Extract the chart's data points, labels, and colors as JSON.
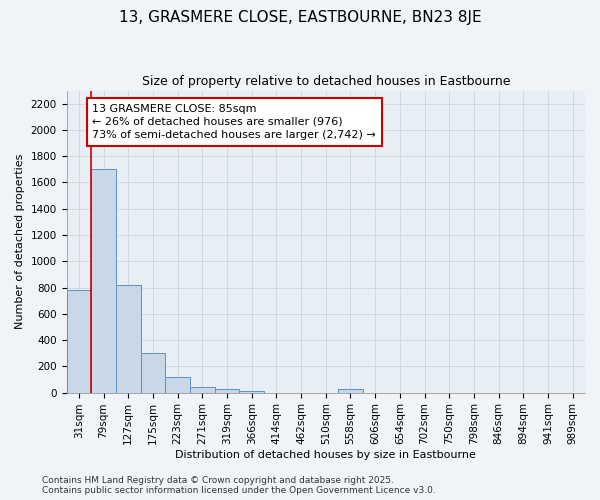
{
  "title": "13, GRASMERE CLOSE, EASTBOURNE, BN23 8JE",
  "subtitle": "Size of property relative to detached houses in Eastbourne",
  "xlabel": "Distribution of detached houses by size in Eastbourne",
  "ylabel": "Number of detached properties",
  "categories": [
    "31sqm",
    "79sqm",
    "127sqm",
    "175sqm",
    "223sqm",
    "271sqm",
    "319sqm",
    "366sqm",
    "414sqm",
    "462sqm",
    "510sqm",
    "558sqm",
    "606sqm",
    "654sqm",
    "702sqm",
    "750sqm",
    "798sqm",
    "846sqm",
    "894sqm",
    "941sqm",
    "989sqm"
  ],
  "values": [
    780,
    1700,
    820,
    300,
    115,
    40,
    30,
    10,
    0,
    0,
    0,
    30,
    0,
    0,
    0,
    0,
    0,
    0,
    0,
    0,
    0
  ],
  "bar_color": "#c8d8e8",
  "bar_edge_color": "#6090c0",
  "vline_color": "#cc0000",
  "vline_position": 1,
  "annotation_text": "13 GRASMERE CLOSE: 85sqm\n← 26% of detached houses are smaller (976)\n73% of semi-detached houses are larger (2,742) →",
  "annotation_box_edgecolor": "#cc0000",
  "ylim": [
    0,
    2300
  ],
  "yticks": [
    0,
    200,
    400,
    600,
    800,
    1000,
    1200,
    1400,
    1600,
    1800,
    2000,
    2200
  ],
  "grid_color": "#c8d0da",
  "plot_bg_color": "#e8eef5",
  "fig_bg_color": "#f0f4f8",
  "footer_text": "Contains HM Land Registry data © Crown copyright and database right 2025.\nContains public sector information licensed under the Open Government Licence v3.0.",
  "title_fontsize": 11,
  "subtitle_fontsize": 9,
  "axis_label_fontsize": 8,
  "tick_fontsize": 7.5,
  "annotation_fontsize": 8,
  "footer_fontsize": 6.5
}
